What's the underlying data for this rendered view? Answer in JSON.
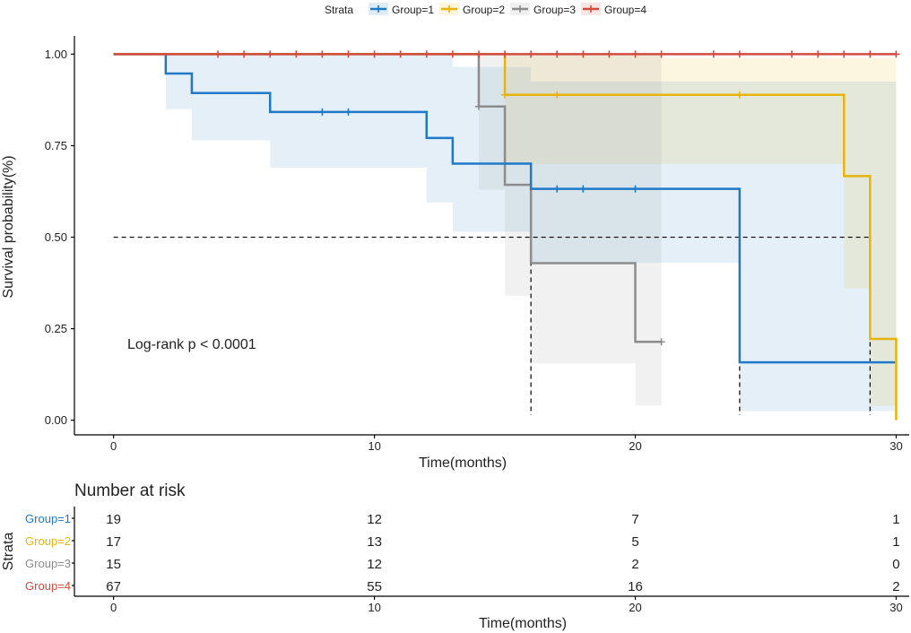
{
  "legend": {
    "title": "Strata",
    "items": [
      "Group=1",
      "Group=2",
      "Group=3",
      "Group=4"
    ]
  },
  "colors": {
    "g1": "#1f78c8",
    "g2": "#e8b40c",
    "g3": "#8c8c8c",
    "g4": "#d24b3f",
    "axis": "#000000",
    "text": "#222222"
  },
  "chart_data": {
    "type": "line",
    "subtype": "kaplan-meier step",
    "ylabel": "Survival probability(%)",
    "xlabel": "Time(months)",
    "xlim": [
      -1.5,
      30.5
    ],
    "ylim": [
      -0.04,
      1.05
    ],
    "xticks": [
      0,
      10,
      20,
      30
    ],
    "yticks": [
      0,
      0.25,
      0.5,
      0.75,
      1.0
    ],
    "ytick_labels": [
      "0.00",
      "0.25",
      "0.50",
      "0.75",
      "1.00"
    ],
    "annotation": "Log-rank p < 0.0001",
    "median_line": 0.5,
    "medians": [
      16,
      24,
      29
    ],
    "series": [
      {
        "name": "Group=1",
        "color_key": "g1",
        "steps": [
          [
            0,
            1
          ],
          [
            2,
            0.947
          ],
          [
            3,
            0.894
          ],
          [
            6,
            0.842
          ],
          [
            12,
            0.771
          ],
          [
            13,
            0.701
          ],
          [
            16,
            0.632
          ],
          [
            24,
            0.158
          ],
          [
            30,
            0.158
          ]
        ],
        "lower": [
          [
            0,
            1
          ],
          [
            2,
            0.85
          ],
          [
            3,
            0.765
          ],
          [
            6,
            0.69
          ],
          [
            12,
            0.595
          ],
          [
            13,
            0.515
          ],
          [
            16,
            0.43
          ],
          [
            24,
            0.025
          ],
          [
            30,
            0.025
          ]
        ],
        "upper": [
          [
            0,
            1
          ],
          [
            2,
            1
          ],
          [
            3,
            1
          ],
          [
            6,
            1
          ],
          [
            12,
            1
          ],
          [
            13,
            0.965
          ],
          [
            16,
            0.925
          ],
          [
            24,
            0.925
          ],
          [
            30,
            0.925
          ]
        ],
        "censors": [
          [
            8,
            0.842
          ],
          [
            9,
            0.842
          ],
          [
            17,
            0.632
          ],
          [
            18,
            0.632
          ],
          [
            20,
            0.632
          ]
        ]
      },
      {
        "name": "Group=2",
        "color_key": "g2",
        "steps": [
          [
            0,
            1
          ],
          [
            15,
            0.889
          ],
          [
            28,
            0.667
          ],
          [
            29,
            0.222
          ],
          [
            30,
            0
          ]
        ],
        "lower": [
          [
            0,
            1
          ],
          [
            15,
            0.7
          ],
          [
            28,
            0.36
          ],
          [
            29,
            0.04
          ],
          [
            30,
            0.04
          ]
        ],
        "upper": [
          [
            0,
            1
          ],
          [
            15,
            1
          ],
          [
            21,
            0.99
          ],
          [
            30,
            0.9
          ]
        ],
        "censors": [
          [
            15,
            0.889
          ],
          [
            17,
            0.889
          ],
          [
            24,
            0.889
          ]
        ]
      },
      {
        "name": "Group=3",
        "color_key": "g3",
        "steps": [
          [
            0,
            1
          ],
          [
            14,
            0.857
          ],
          [
            15,
            0.643
          ],
          [
            16,
            0.429
          ],
          [
            20,
            0.214
          ],
          [
            21,
            0.214
          ]
        ],
        "lower": [
          [
            0,
            1
          ],
          [
            14,
            0.63
          ],
          [
            15,
            0.34
          ],
          [
            16,
            0.155
          ],
          [
            20,
            0.04
          ],
          [
            21,
            0.04
          ]
        ],
        "upper": [
          [
            0,
            1
          ],
          [
            21,
            1
          ]
        ],
        "censors": [
          [
            14,
            0.857
          ],
          [
            21,
            0.214
          ]
        ]
      },
      {
        "name": "Group=4",
        "color_key": "g4",
        "steps": [
          [
            0,
            1
          ],
          [
            30,
            1
          ]
        ],
        "lower": [],
        "upper": [],
        "censors": [
          [
            4,
            1
          ],
          [
            5,
            1
          ],
          [
            6,
            1
          ],
          [
            7,
            1
          ],
          [
            8,
            1
          ],
          [
            9,
            1
          ],
          [
            10,
            1
          ],
          [
            11,
            1
          ],
          [
            12,
            1
          ],
          [
            13,
            1
          ],
          [
            14,
            1
          ],
          [
            15,
            1
          ],
          [
            16,
            1
          ],
          [
            17,
            1
          ],
          [
            18,
            1
          ],
          [
            19,
            1
          ],
          [
            20,
            1
          ],
          [
            21,
            1
          ],
          [
            23,
            1
          ],
          [
            24,
            1
          ],
          [
            26,
            1
          ],
          [
            27,
            1
          ],
          [
            28,
            1
          ],
          [
            29,
            1
          ],
          [
            30,
            1
          ]
        ]
      }
    ]
  },
  "risk_table": {
    "title": "Number at risk",
    "ylabel": "Strata",
    "xlabel": "Time(months)",
    "times": [
      0,
      10,
      20,
      30
    ],
    "rows": [
      {
        "label": "Group=1",
        "color_key": "g1",
        "values": [
          "19",
          "12",
          "7",
          "1"
        ]
      },
      {
        "label": "Group=2",
        "color_key": "g2",
        "values": [
          "17",
          "13",
          "5",
          "1"
        ]
      },
      {
        "label": "Group=3",
        "color_key": "g3",
        "values": [
          "15",
          "12",
          "2",
          "0"
        ]
      },
      {
        "label": "Group=4",
        "color_key": "g4",
        "values": [
          "67",
          "55",
          "16",
          "2"
        ]
      }
    ]
  }
}
